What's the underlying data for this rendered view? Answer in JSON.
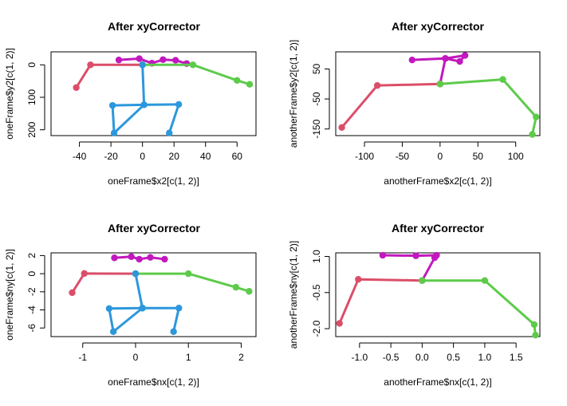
{
  "colors": {
    "head": "#C218BE",
    "left_arm": "#DB4E69",
    "right_arm": "#5DCB4A",
    "body": "#2C97DD",
    "axis": "#000000"
  },
  "chart_data": [
    {
      "type": "line",
      "title": "After xyCorrector",
      "xlabel": "oneFrame$x2[c(1, 2)]",
      "ylabel": "oneFrame$y2[c(1, 2)]",
      "xticks": [
        "-40",
        "-20",
        "0",
        "20",
        "40",
        "60"
      ],
      "yticks": [
        "200",
        "100",
        "0"
      ],
      "xlim": [
        -58,
        72
      ],
      "ylim": [
        -218,
        40
      ],
      "series": [
        {
          "color_key": "head",
          "points": [
            [
              -15,
              15
            ],
            [
              -2,
              19
            ],
            [
              6,
              5
            ],
            [
              13,
              16
            ],
            [
              21,
              14
            ],
            [
              28,
              4
            ]
          ],
          "path": [
            [
              -15,
              15
            ],
            [
              -2,
              19
            ],
            [
              6,
              5
            ],
            [
              13,
              16
            ],
            [
              21,
              14
            ],
            [
              28,
              4
            ]
          ],
          "dummy": 0
        },
        {
          "color_key": "left_arm",
          "points": [
            [
              0,
              0
            ],
            [
              -33,
              0
            ],
            [
              -42,
              -70
            ]
          ]
        },
        {
          "color_key": "right_arm",
          "points": [
            [
              0,
              0
            ],
            [
              32,
              0
            ],
            [
              60,
              -48
            ],
            [
              68,
              -60
            ]
          ]
        },
        {
          "color_key": "body",
          "points": [
            [
              0,
              0
            ],
            [
              1,
              -123
            ],
            [
              -19,
              -125
            ],
            [
              -18,
              -210
            ],
            [
              1,
              -123
            ],
            [
              23,
              -122
            ],
            [
              17,
              -210
            ]
          ]
        }
      ]
    },
    {
      "type": "line",
      "title": "After xyCorrector",
      "xlabel": "anotherFrame$x2[c(1, 2)]",
      "ylabel": "anotherFrame$y2[c(1, 2)]",
      "xticks": [
        "-100",
        "-50",
        "0",
        "50",
        "100"
      ],
      "yticks": [
        "-150",
        "-50",
        "50"
      ],
      "xlim": [
        -138,
        132
      ],
      "ylim": [
        -172,
        107
      ],
      "series": [
        {
          "color_key": "head",
          "points": [
            [
              0,
              0
            ],
            [
              7,
              85
            ],
            [
              26,
              75
            ],
            [
              33,
              95
            ],
            [
              7,
              85
            ],
            [
              -37,
              80
            ]
          ]
        },
        {
          "color_key": "left_arm",
          "points": [
            [
              0,
              0
            ],
            [
              -83,
              -5
            ],
            [
              -130,
              -145
            ]
          ]
        },
        {
          "color_key": "right_arm",
          "points": [
            [
              0,
              0
            ],
            [
              83,
              15
            ],
            [
              127,
              -110
            ],
            [
              122,
              -168
            ]
          ]
        }
      ]
    },
    {
      "type": "line",
      "title": "After xyCorrector",
      "xlabel": "oneFrame$nx[c(1, 2)]",
      "ylabel": "oneFrame$ny[c(1, 2)]",
      "xticks": [
        "-1",
        "0",
        "1",
        "2"
      ],
      "yticks": [
        "-6",
        "-4",
        "-2",
        "0",
        "2"
      ],
      "xlim": [
        -1.6,
        2.28
      ],
      "ylim": [
        -6.95,
        2.3
      ],
      "series": [
        {
          "color_key": "head",
          "points": [
            [
              -0.4,
              1.75
            ],
            [
              -0.08,
              1.88
            ],
            [
              0.07,
              1.6
            ],
            [
              0.28,
              1.8
            ],
            [
              0.55,
              1.6
            ]
          ]
        },
        {
          "color_key": "left_arm",
          "points": [
            [
              0,
              0
            ],
            [
              -0.97,
              0.02
            ],
            [
              -1.2,
              -2.1
            ]
          ]
        },
        {
          "color_key": "right_arm",
          "points": [
            [
              0,
              0
            ],
            [
              1.0,
              0
            ],
            [
              1.9,
              -1.5
            ],
            [
              2.15,
              -1.95
            ]
          ]
        },
        {
          "color_key": "body",
          "points": [
            [
              0,
              0
            ],
            [
              0.13,
              -3.8
            ],
            [
              -0.5,
              -3.85
            ],
            [
              -0.42,
              -6.4
            ],
            [
              0.13,
              -3.8
            ],
            [
              0.82,
              -3.8
            ],
            [
              0.72,
              -6.4
            ]
          ]
        }
      ]
    },
    {
      "type": "line",
      "title": "After xyCorrector",
      "xlabel": "anotherFrame$nx[c(1, 2)]",
      "ylabel": "anotherFrame$ny[c(1, 2)]",
      "xticks": [
        "-1.0",
        "-0.5",
        "0.0",
        "0.5",
        "1.0",
        "1.5"
      ],
      "yticks": [
        "-2.0",
        "-0.5",
        "1.0"
      ],
      "xlim": [
        -1.38,
        1.88
      ],
      "ylim": [
        -2.33,
        1.15
      ],
      "series": [
        {
          "color_key": "head",
          "points": [
            [
              0,
              0
            ],
            [
              0.2,
              0.95
            ],
            [
              0.23,
              1.05
            ],
            [
              -0.1,
              1.03
            ],
            [
              -0.63,
              1.05
            ]
          ]
        },
        {
          "color_key": "left_arm",
          "points": [
            [
              0,
              0
            ],
            [
              -1.02,
              0.05
            ],
            [
              -1.32,
              -1.78
            ]
          ]
        },
        {
          "color_key": "right_arm",
          "points": [
            [
              0,
              0
            ],
            [
              1.0,
              0
            ],
            [
              1.79,
              -1.83
            ],
            [
              1.81,
              -2.27
            ]
          ]
        }
      ]
    }
  ]
}
